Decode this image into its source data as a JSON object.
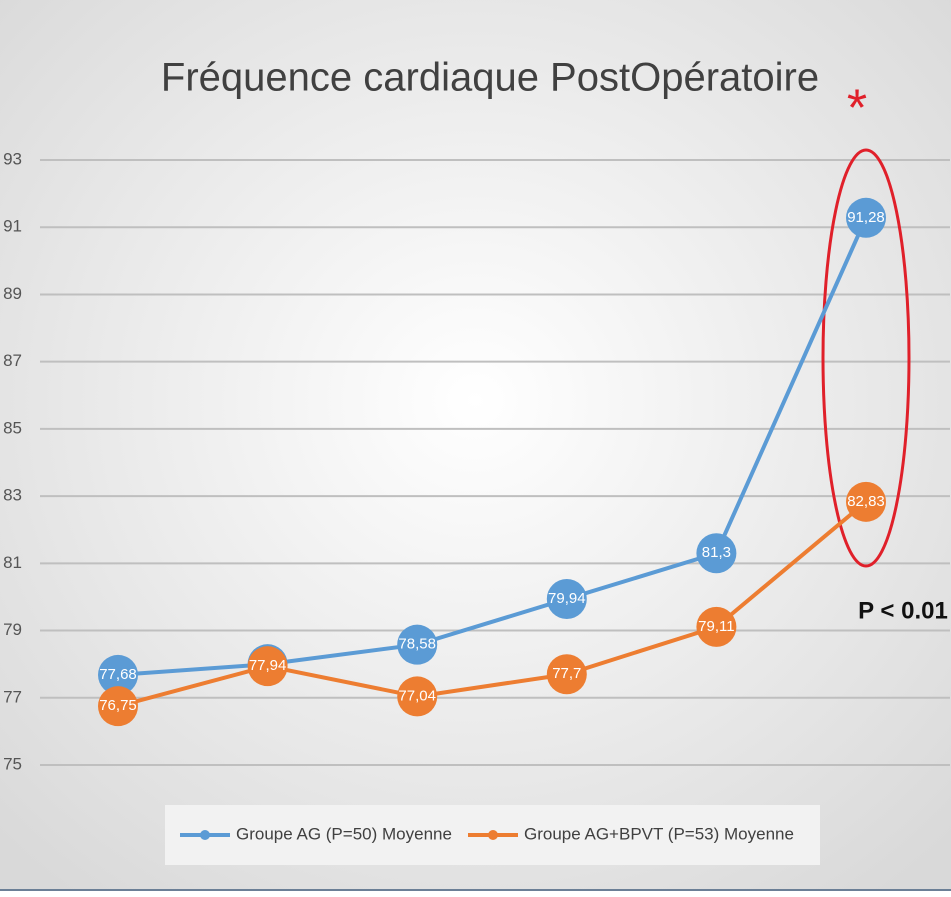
{
  "chart_data": {
    "type": "line",
    "title": "Fréquence cardiaque PostOpératoire",
    "annotations": [
      "*",
      "P < 0.01"
    ],
    "ylim": [
      75,
      93
    ],
    "yticks": [
      75,
      77,
      79,
      81,
      83,
      85,
      87,
      89,
      91,
      93
    ],
    "grid": true,
    "legend": "bottom",
    "series": [
      {
        "name": "Groupe AG (P=50) Moyenne",
        "color": "#5b9bd5",
        "values": [
          77.68,
          78,
          78.58,
          79.94,
          81.3,
          91.28
        ],
        "value_labels": [
          "77,68",
          "78",
          "78,58",
          "79,94",
          "81,3",
          "91,28"
        ]
      },
      {
        "name": "Groupe AG+BPVT (P=53) Moyenne",
        "color": "#ed7d31",
        "values": [
          76.75,
          77.94,
          77.04,
          77.7,
          79.11,
          82.83
        ],
        "value_labels": [
          "76,75",
          "77,94",
          "77,04",
          "77,7",
          "79,11",
          "82,83"
        ]
      }
    ]
  }
}
